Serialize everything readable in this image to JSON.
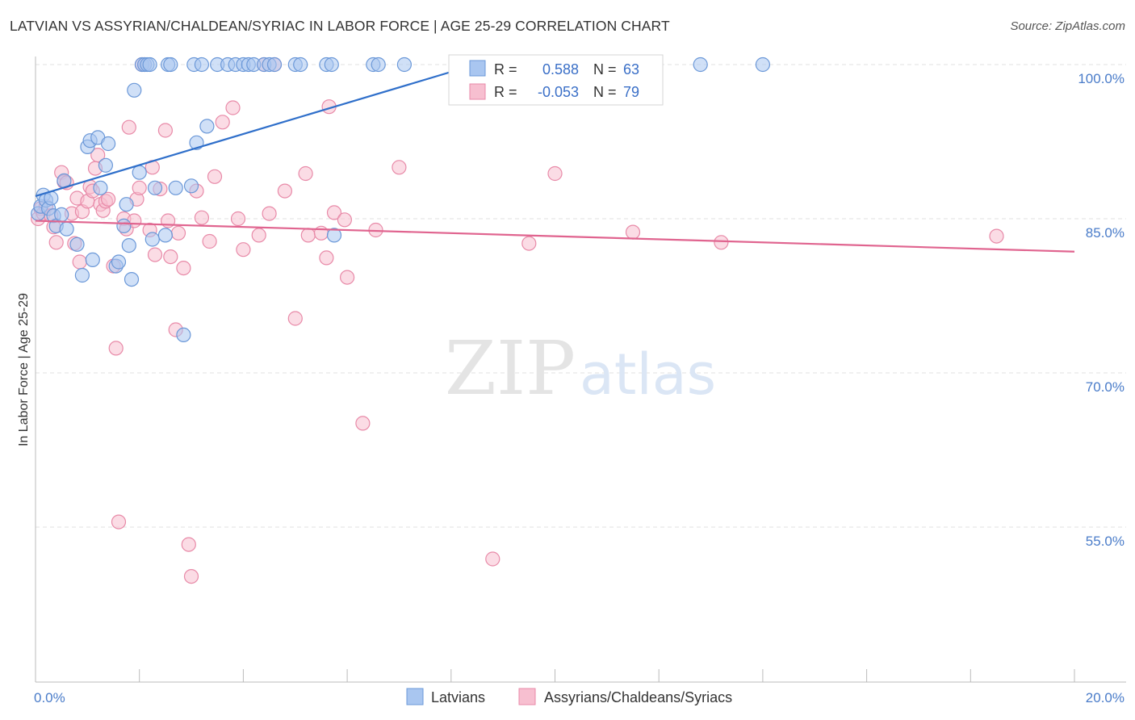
{
  "title": "LATVIAN VS ASSYRIAN/CHALDEAN/SYRIAC IN LABOR FORCE | AGE 25-29 CORRELATION CHART",
  "source": "Source: ZipAtlas.com",
  "watermark": {
    "zip": "ZIP",
    "atlas": "atlas"
  },
  "colors": {
    "blue_fill": "#a9c6f0",
    "blue_stroke": "#6b98d8",
    "blue_line": "#2f6fca",
    "pink_fill": "#f7bfd0",
    "pink_stroke": "#e88aa8",
    "pink_line": "#e0648f",
    "tick": "#4a7cc9",
    "grid": "#e2e2e2"
  },
  "legend": {
    "series": [
      {
        "r_label": "R =",
        "r_value": "0.588",
        "n_label": "N =",
        "n_value": "63"
      },
      {
        "r_label": "R =",
        "r_value": "-0.053",
        "n_label": "N =",
        "n_value": "79"
      }
    ]
  },
  "chart_data": {
    "type": "scatter",
    "title": "LATVIAN VS ASSYRIAN/CHALDEAN/SYRIAC IN LABOR FORCE | AGE 25-29 CORRELATION CHART",
    "xlabel": "",
    "ylabel": "In Labor Force | Age 25-29",
    "xlim": [
      0,
      20
    ],
    "ylim": [
      40,
      101.5
    ],
    "x_tick_labels": [
      {
        "value": 0,
        "label": "0.0%"
      },
      {
        "value": 20,
        "label": "20.0%"
      }
    ],
    "y_tick_labels": [
      {
        "value": 100,
        "label": "100.0%"
      },
      {
        "value": 85,
        "label": "85.0%"
      },
      {
        "value": 70,
        "label": "70.0%"
      },
      {
        "value": 55,
        "label": "55.0%"
      }
    ],
    "x_minor_ticks": [
      0,
      2,
      4,
      6,
      8,
      10,
      12,
      14,
      16,
      18,
      20
    ],
    "grid": true,
    "series": [
      {
        "name": "Latvians",
        "color": "blue",
        "trend": {
          "x": [
            0,
            8.8
          ],
          "y": [
            87.2,
            100.5
          ]
        },
        "points": [
          [
            0.05,
            85.5
          ],
          [
            0.1,
            86.2
          ],
          [
            0.15,
            87.3
          ],
          [
            0.2,
            86.8
          ],
          [
            0.25,
            86.0
          ],
          [
            0.3,
            87.0
          ],
          [
            0.35,
            85.3
          ],
          [
            0.4,
            84.3
          ],
          [
            0.5,
            85.4
          ],
          [
            0.55,
            88.7
          ],
          [
            0.6,
            84.0
          ],
          [
            0.8,
            82.5
          ],
          [
            0.9,
            79.5
          ],
          [
            1.0,
            92.0
          ],
          [
            1.05,
            92.6
          ],
          [
            1.1,
            81.0
          ],
          [
            1.2,
            92.9
          ],
          [
            1.25,
            88.0
          ],
          [
            1.35,
            90.2
          ],
          [
            1.4,
            92.3
          ],
          [
            1.55,
            80.4
          ],
          [
            1.6,
            80.8
          ],
          [
            1.7,
            84.3
          ],
          [
            1.75,
            86.4
          ],
          [
            1.8,
            82.4
          ],
          [
            1.85,
            79.1
          ],
          [
            1.9,
            97.5
          ],
          [
            2.0,
            89.5
          ],
          [
            2.05,
            100.0
          ],
          [
            2.1,
            100.0
          ],
          [
            2.15,
            100.0
          ],
          [
            2.2,
            100.0
          ],
          [
            2.25,
            83.0
          ],
          [
            2.3,
            88.0
          ],
          [
            2.5,
            83.4
          ],
          [
            2.55,
            100.0
          ],
          [
            2.6,
            100.0
          ],
          [
            2.7,
            88.0
          ],
          [
            2.85,
            73.7
          ],
          [
            3.0,
            88.2
          ],
          [
            3.05,
            100.0
          ],
          [
            3.1,
            92.4
          ],
          [
            3.2,
            100.0
          ],
          [
            3.3,
            94.0
          ],
          [
            3.5,
            100.0
          ],
          [
            3.7,
            100.0
          ],
          [
            3.85,
            100.0
          ],
          [
            4.0,
            100.0
          ],
          [
            4.1,
            100.0
          ],
          [
            4.2,
            100.0
          ],
          [
            4.4,
            100.0
          ],
          [
            4.5,
            100.0
          ],
          [
            4.6,
            100.0
          ],
          [
            5.0,
            100.0
          ],
          [
            5.1,
            100.0
          ],
          [
            5.6,
            100.0
          ],
          [
            5.7,
            100.0
          ],
          [
            5.75,
            83.4
          ],
          [
            6.5,
            100.0
          ],
          [
            6.6,
            100.0
          ],
          [
            7.1,
            100.0
          ],
          [
            12.8,
            100.0
          ],
          [
            14.0,
            100.0
          ]
        ]
      },
      {
        "name": "Assyrians/Chaldeans/Syriacs",
        "color": "pink",
        "trend": {
          "x": [
            0,
            20
          ],
          "y": [
            84.8,
            81.8
          ]
        },
        "points": [
          [
            0.05,
            85.0
          ],
          [
            0.1,
            86.0
          ],
          [
            0.15,
            85.5
          ],
          [
            0.2,
            86.2
          ],
          [
            0.3,
            85.3
          ],
          [
            0.35,
            84.2
          ],
          [
            0.4,
            82.7
          ],
          [
            0.5,
            89.5
          ],
          [
            0.55,
            88.6
          ],
          [
            0.6,
            88.5
          ],
          [
            0.7,
            85.5
          ],
          [
            0.75,
            82.6
          ],
          [
            0.8,
            87.0
          ],
          [
            0.85,
            80.8
          ],
          [
            0.9,
            85.7
          ],
          [
            1.0,
            86.7
          ],
          [
            1.05,
            88.1
          ],
          [
            1.1,
            87.7
          ],
          [
            1.15,
            89.9
          ],
          [
            1.2,
            91.2
          ],
          [
            1.25,
            86.4
          ],
          [
            1.3,
            85.8
          ],
          [
            1.35,
            86.7
          ],
          [
            1.4,
            86.9
          ],
          [
            1.5,
            80.4
          ],
          [
            1.55,
            72.4
          ],
          [
            1.6,
            55.5
          ],
          [
            1.7,
            85.0
          ],
          [
            1.75,
            84.0
          ],
          [
            1.8,
            93.9
          ],
          [
            1.9,
            84.8
          ],
          [
            1.95,
            86.9
          ],
          [
            2.0,
            88.0
          ],
          [
            2.05,
            100.0
          ],
          [
            2.1,
            100.0
          ],
          [
            2.2,
            83.9
          ],
          [
            2.25,
            90.0
          ],
          [
            2.3,
            81.5
          ],
          [
            2.4,
            87.9
          ],
          [
            2.5,
            93.6
          ],
          [
            2.55,
            84.8
          ],
          [
            2.6,
            81.3
          ],
          [
            2.7,
            74.2
          ],
          [
            2.75,
            83.6
          ],
          [
            2.85,
            80.2
          ],
          [
            2.95,
            53.3
          ],
          [
            3.0,
            50.2
          ],
          [
            3.1,
            87.7
          ],
          [
            3.2,
            85.1
          ],
          [
            3.35,
            82.8
          ],
          [
            3.45,
            89.1
          ],
          [
            3.6,
            94.4
          ],
          [
            3.8,
            95.8
          ],
          [
            3.9,
            85.0
          ],
          [
            4.0,
            82.0
          ],
          [
            4.3,
            83.4
          ],
          [
            4.4,
            100.0
          ],
          [
            4.5,
            85.5
          ],
          [
            4.6,
            100.0
          ],
          [
            4.8,
            87.7
          ],
          [
            5.0,
            75.3
          ],
          [
            5.2,
            89.4
          ],
          [
            5.25,
            83.4
          ],
          [
            5.5,
            83.6
          ],
          [
            5.6,
            81.2
          ],
          [
            5.65,
            95.9
          ],
          [
            5.75,
            85.6
          ],
          [
            5.95,
            84.9
          ],
          [
            6.0,
            79.3
          ],
          [
            6.3,
            65.1
          ],
          [
            6.55,
            83.9
          ],
          [
            7.0,
            90.0
          ],
          [
            8.8,
            51.9
          ],
          [
            9.5,
            82.6
          ],
          [
            10.0,
            89.4
          ],
          [
            11.0,
            100.0
          ],
          [
            11.5,
            83.7
          ],
          [
            13.2,
            82.7
          ],
          [
            18.5,
            83.3
          ]
        ]
      }
    ]
  },
  "bottom_legend": [
    {
      "label": "Latvians"
    },
    {
      "label": "Assyrians/Chaldeans/Syriacs"
    }
  ]
}
